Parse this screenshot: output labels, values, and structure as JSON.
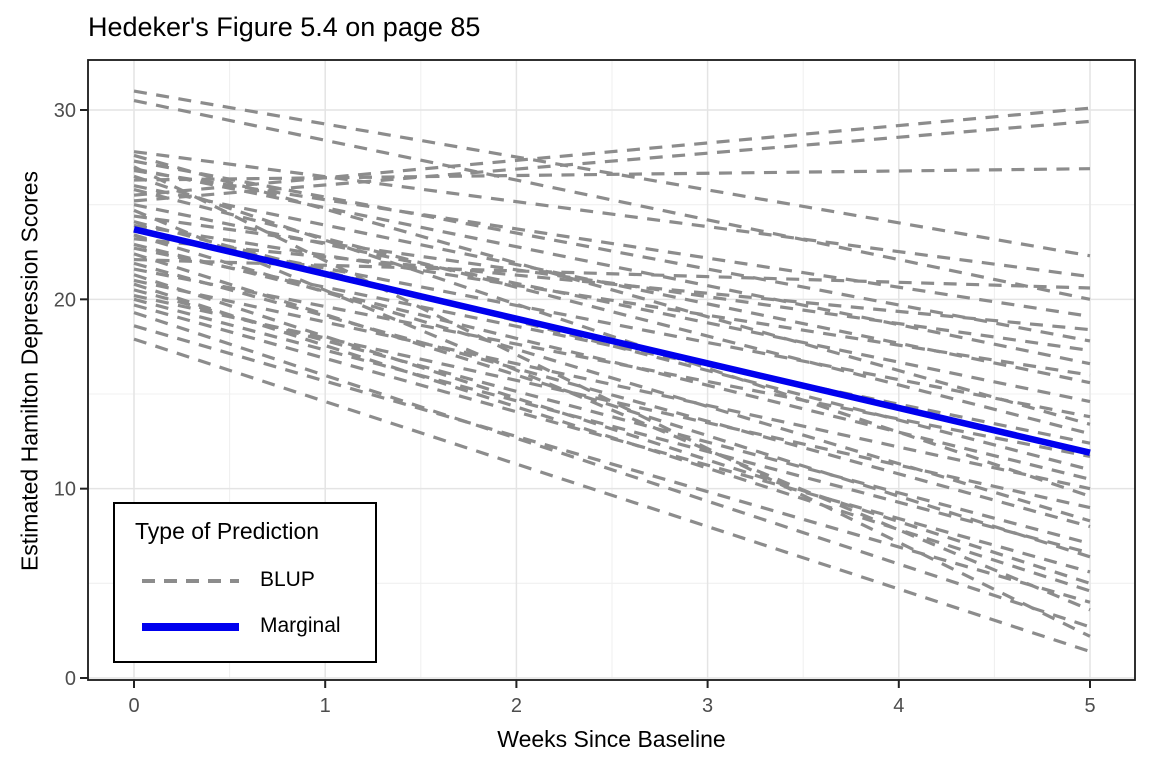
{
  "title": "Hedeker's Figure 5.4 on page 85",
  "axes": {
    "x": {
      "label": "Weeks Since Baseline",
      "ticks": [
        0,
        1,
        2,
        3,
        4,
        5
      ]
    },
    "y": {
      "label": "Estimated Hamilton Depression Scores",
      "ticks": [
        0,
        10,
        20,
        30
      ]
    },
    "tick_label_color": "#4D4D4D",
    "axis_title_color": "#000000"
  },
  "legend": {
    "title": "Type of Prediction",
    "items": [
      {
        "label": "BLUP",
        "style": "dashed",
        "color": "#8C8C8C"
      },
      {
        "label": "Marginal",
        "style": "solid",
        "color": "#0000EE"
      }
    ]
  },
  "colors": {
    "blup_line": "#8C8C8C",
    "marginal_line": "#0000EE",
    "panel_border": "#1A1A1A",
    "grid_major": "#E4E4E4",
    "grid_minor": "#F0F0F0",
    "panel_background": "#FFFFFF"
  },
  "chart_data": {
    "type": "line",
    "title": "Hedeker's Figure 5.4 on page 85",
    "xlabel": "Weeks Since Baseline",
    "ylabel": "Estimated Hamilton Depression Scores",
    "x_ticks": [
      0,
      1,
      2,
      3,
      4,
      5
    ],
    "y_ticks": [
      0,
      10,
      20,
      30
    ],
    "xlim": [
      -0.25,
      5.25
    ],
    "ylim": [
      0,
      32.65
    ],
    "grid": {
      "major_x": [
        0,
        1,
        2,
        3,
        4,
        5
      ],
      "minor_x": [
        0.5,
        1.5,
        2.5,
        3.5,
        4.5
      ],
      "major_y": [
        0,
        10,
        20,
        30
      ],
      "minor_y": [
        5,
        15,
        25
      ]
    },
    "legend_position": "inside bottom-left",
    "series": [
      {
        "name": "BLUP",
        "style": "dashed",
        "color": "#8C8C8C",
        "x": [
          0,
          5
        ],
        "lines": [
          [
            31.0,
            22.3
          ],
          [
            30.5,
            20.0
          ],
          [
            27.8,
            21.2
          ],
          [
            27.6,
            13.4
          ],
          [
            27.3,
            17.8
          ],
          [
            27.0,
            2.2
          ],
          [
            26.9,
            16.6
          ],
          [
            26.8,
            19.1
          ],
          [
            26.5,
            9.6
          ],
          [
            26.3,
            26.9
          ],
          [
            26.0,
            15.6
          ],
          [
            25.8,
            12.9
          ],
          [
            25.5,
            30.1
          ],
          [
            25.2,
            29.4
          ],
          [
            25.0,
            14.6
          ],
          [
            24.7,
            3.6
          ],
          [
            24.4,
            17.3
          ],
          [
            24.1,
            11.0
          ],
          [
            23.9,
            16.0
          ],
          [
            23.6,
            13.8
          ],
          [
            23.4,
            8.3
          ],
          [
            23.2,
            18.4
          ],
          [
            22.9,
            10.5
          ],
          [
            22.7,
            12.4
          ],
          [
            22.4,
            6.4
          ],
          [
            22.1,
            20.6
          ],
          [
            21.9,
            8.0
          ],
          [
            21.6,
            11.7
          ],
          [
            21.3,
            5.0
          ],
          [
            21.0,
            10.0
          ],
          [
            20.8,
            4.6
          ],
          [
            20.5,
            7.1
          ],
          [
            20.2,
            9.0
          ],
          [
            20.0,
            6.6
          ],
          [
            19.7,
            5.6
          ],
          [
            19.3,
            2.7
          ],
          [
            18.6,
            4.0
          ],
          [
            17.9,
            1.4
          ]
        ]
      },
      {
        "name": "Marginal",
        "style": "solid",
        "color": "#0000EE",
        "x": [
          0,
          5
        ],
        "y": [
          23.7,
          11.9
        ]
      }
    ]
  }
}
